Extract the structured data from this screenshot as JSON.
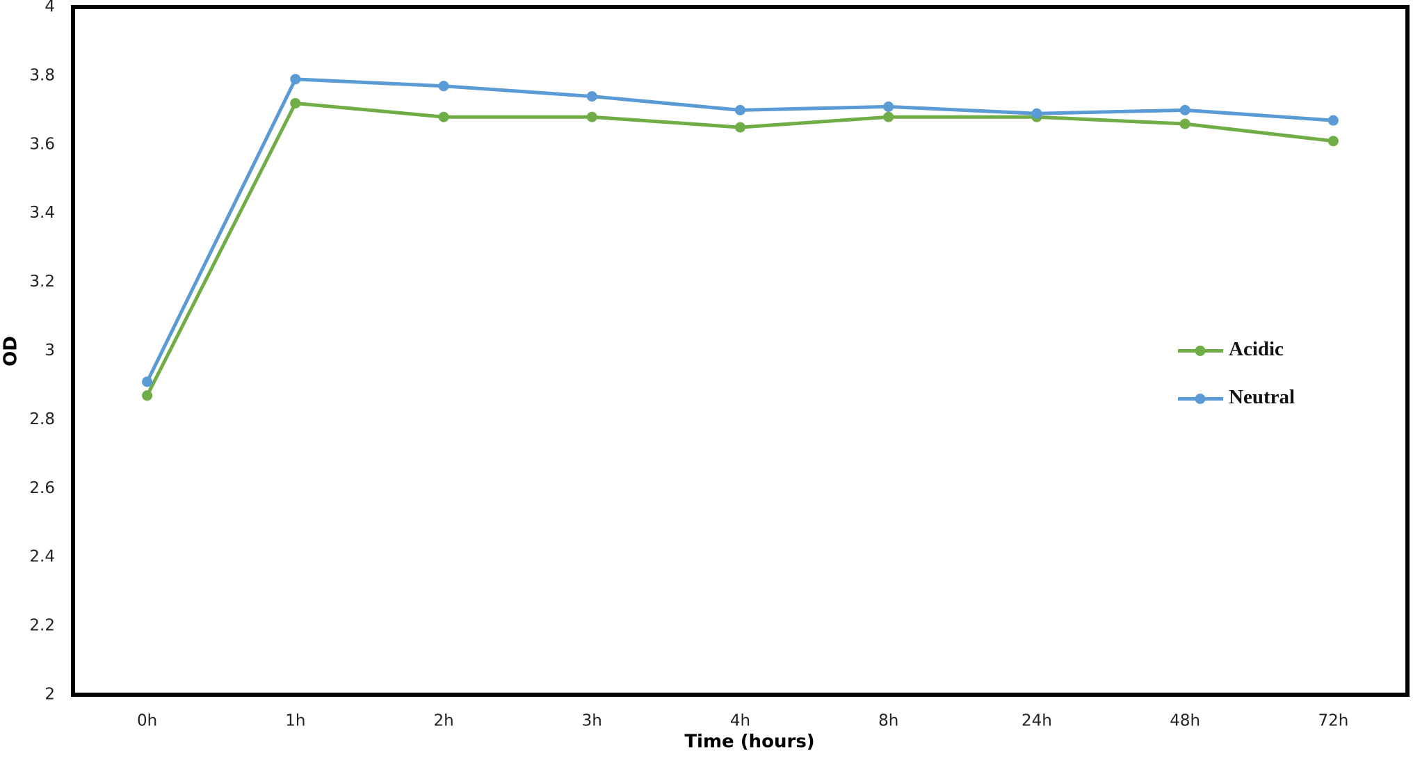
{
  "chart_data": {
    "type": "line",
    "x_label": "Time (hours)",
    "y_label": "OD",
    "categories": [
      "0h",
      "1h",
      "2h",
      "3h",
      "4h",
      "8h",
      "24h",
      "48h",
      "72h"
    ],
    "series": [
      {
        "name": "Acidic",
        "color": "#70ad47",
        "values": [
          2.87,
          3.72,
          3.68,
          3.68,
          3.65,
          3.68,
          3.68,
          3.66,
          3.61
        ]
      },
      {
        "name": "Neutral",
        "color": "#5b9bd5",
        "values": [
          2.91,
          3.79,
          3.77,
          3.74,
          3.7,
          3.71,
          3.69,
          3.7,
          3.67
        ]
      }
    ],
    "ylim": [
      2,
      4
    ],
    "yticks": [
      2,
      2.2,
      2.4,
      2.6,
      2.8,
      3,
      3.2,
      3.4,
      3.6,
      3.8,
      4
    ],
    "grid": false,
    "legend": "right"
  }
}
